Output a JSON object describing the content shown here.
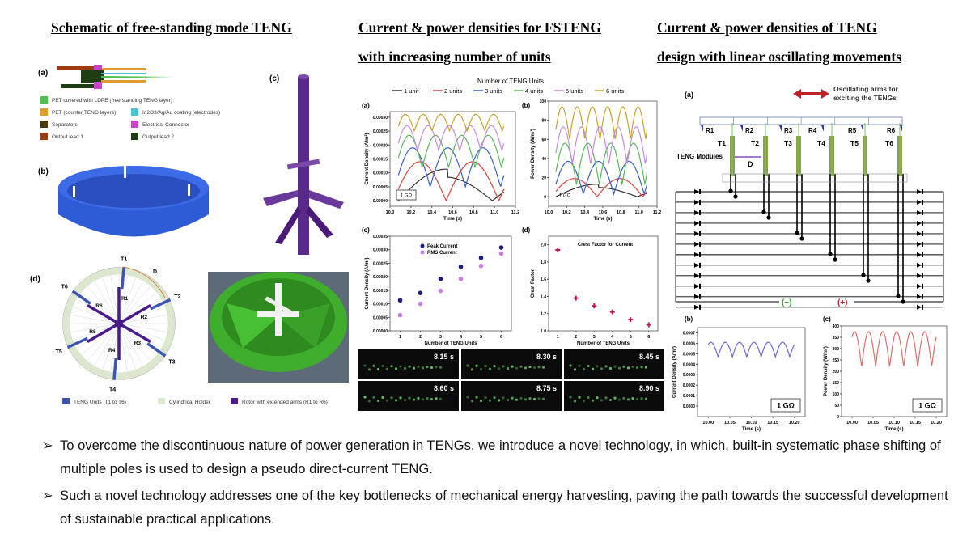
{
  "titles": {
    "left": "Schematic of free-standing mode TENG",
    "middle_line1": "Current & power densities for FSTENG",
    "middle_line2": "with increasing number of units",
    "right_line1": "Current & power densities of TENG",
    "right_line2": "design with linear oscillating movements"
  },
  "left_panel": {
    "label_a": "(a)",
    "label_b": "(b)",
    "label_c": "(c)",
    "label_d": "(d)",
    "legend_a": [
      {
        "label": "PET covered with LDPE (free standing TENG layer)",
        "color": "#4fbf4f"
      },
      {
        "label": "PET (counter TENG layers)",
        "color": "#e39a2c"
      },
      {
        "label": "In2O3/Ag/Au coating (electrodes)",
        "color": "#4fc0cf"
      },
      {
        "label": "Separators",
        "color": "#4a3a10"
      },
      {
        "label": "Electrical Connector",
        "color": "#c845c8"
      },
      {
        "label": "Output lead 1",
        "color": "#9c3a10"
      },
      {
        "label": "Output lead 2",
        "color": "#1d3d12"
      }
    ],
    "rotor_labels": [
      "R1",
      "R2",
      "R3",
      "R4",
      "R5",
      "R6"
    ],
    "teng_labels": [
      "T1",
      "T2",
      "T3",
      "T4",
      "T5",
      "T6"
    ],
    "distance_label": "D",
    "legend_d": [
      {
        "label": "TENG Units (T1 to T6)",
        "color": "#3a55b5"
      },
      {
        "label": "Cylindrical Holder",
        "color": "#dde6cf"
      },
      {
        "label": "Rotor with extended arms (R1 to R6)",
        "color": "#4b1a8a"
      }
    ]
  },
  "middle_panel": {
    "legend_title": "Number of TENG Units",
    "photo_times": [
      "8.15 s",
      "8.30 s",
      "8.45 s",
      "8.60 s",
      "8.75 s",
      "8.90 s"
    ]
  },
  "right_panel": {
    "label_a": "(a)",
    "label_b": "(b)",
    "label_c": "(c)",
    "oscillating_label_1": "Oscillating arms for",
    "oscillating_label_2": "exciting the TENGs",
    "rotor_labels": [
      "R1",
      "R2",
      "R3",
      "R4",
      "R5",
      "R6"
    ],
    "teng_labels": [
      "T1",
      "T2",
      "T3",
      "T4",
      "T5",
      "T6"
    ],
    "modules_label": "TENG Modules",
    "distance_label": "D",
    "negative_label": "(−)",
    "positive_label": "(+)",
    "negative_color": "#3aa53a",
    "positive_color": "#c0202a"
  },
  "chart_data": [
    {
      "id": "mid-a",
      "label": "(a)",
      "type": "line",
      "xlabel": "Time (s)",
      "ylabel": "Current Density (A/m²)",
      "xlim": [
        10.0,
        11.2
      ],
      "ylim": [
        -2e-05,
        0.00032
      ],
      "xticks": [
        "10.0",
        "10.2",
        "10.4",
        "10.6",
        "10.8",
        "11.0",
        "11.2"
      ],
      "yticks": [
        "0.00000",
        "0.00005",
        "0.00010",
        "0.00015",
        "0.00020",
        "0.00025",
        "0.00030"
      ],
      "annotation": "1 GΩ",
      "series": [
        {
          "name": "1 unit",
          "color": "#333333",
          "peak": 0.000113,
          "trough": 0.0
        },
        {
          "name": "2 units",
          "color": "#d9453c",
          "peak": 0.00014,
          "trough": 0.0
        },
        {
          "name": "3 units",
          "color": "#3a5fc8",
          "peak": 0.00019,
          "trough": 5e-05
        },
        {
          "name": "4 units",
          "color": "#5cb85c",
          "peak": 0.000235,
          "trough": 0.00012
        },
        {
          "name": "5 units",
          "color": "#c58be0",
          "peak": 0.00027,
          "trough": 0.00018
        },
        {
          "name": "6 units",
          "color": "#c9a227",
          "peak": 0.00031,
          "trough": 0.00025
        }
      ]
    },
    {
      "id": "mid-b",
      "label": "(b)",
      "type": "line",
      "xlabel": "Time (s)",
      "ylabel": "Power Density (W/m²)",
      "xlim": [
        10.0,
        11.2
      ],
      "ylim": [
        -10,
        100
      ],
      "xticks": [
        "10.0",
        "10.2",
        "10.4",
        "10.6",
        "10.8",
        "11.0",
        "11.2"
      ],
      "yticks": [
        "0",
        "20",
        "40",
        "60",
        "80",
        "100"
      ],
      "annotation": "1 GΩ",
      "series": [
        {
          "name": "1 unit",
          "color": "#333333",
          "peak": 13,
          "trough": 0
        },
        {
          "name": "2 units",
          "color": "#d9453c",
          "peak": 19,
          "trough": 0
        },
        {
          "name": "3 units",
          "color": "#3a5fc8",
          "peak": 37,
          "trough": 3
        },
        {
          "name": "4 units",
          "color": "#5cb85c",
          "peak": 56,
          "trough": 13
        },
        {
          "name": "5 units",
          "color": "#c58be0",
          "peak": 73,
          "trough": 34
        },
        {
          "name": "6 units",
          "color": "#c9a227",
          "peak": 94,
          "trough": 60
        }
      ]
    },
    {
      "id": "mid-c",
      "label": "(c)",
      "type": "scatter",
      "xlabel": "Number of TENG Units",
      "ylabel": "Current Density (A/m²)",
      "xlim": [
        0.5,
        6.5
      ],
      "ylim": [
        0,
        0.00035
      ],
      "xticks": [
        "1",
        "2",
        "3",
        "4",
        "5",
        "6"
      ],
      "yticks": [
        "0.00000",
        "0.00005",
        "0.00010",
        "0.00015",
        "0.00020",
        "0.00025",
        "0.00030",
        "0.00035"
      ],
      "x": [
        1,
        2,
        3,
        4,
        5,
        6
      ],
      "series": [
        {
          "name": "Peak Current",
          "color": "#1c1f7a",
          "values": [
            0.000113,
            0.00014,
            0.000192,
            0.000237,
            0.00027,
            0.000308
          ]
        },
        {
          "name": "RMS Current",
          "color": "#c77fe0",
          "values": [
            5.8e-05,
            0.0001,
            0.000148,
            0.000192,
            0.00024,
            0.000286
          ]
        }
      ]
    },
    {
      "id": "mid-d",
      "label": "(d)",
      "type": "scatter",
      "xlabel": "Number of TENG Units",
      "ylabel": "Crest Factor",
      "xlim": [
        0.5,
        6.5
      ],
      "ylim": [
        1.0,
        2.1
      ],
      "xticks": [
        "1",
        "2",
        "3",
        "4",
        "5",
        "6"
      ],
      "yticks": [
        "1.0",
        "1.2",
        "1.4",
        "1.6",
        "1.8",
        "2.0"
      ],
      "x": [
        1,
        2,
        3,
        4,
        5,
        6
      ],
      "series": [
        {
          "name": "Crest Factor for Current",
          "color": "#c2185b",
          "values": [
            1.94,
            1.38,
            1.29,
            1.22,
            1.13,
            1.07
          ]
        }
      ]
    },
    {
      "id": "right-b",
      "label": "(b)",
      "type": "line",
      "xlabel": "Time (s)",
      "ylabel": "Current Density (A/m²)",
      "xlim": [
        9.975,
        10.225
      ],
      "ylim": [
        -0.0001,
        0.00075
      ],
      "xticks": [
        "10.00",
        "10.05",
        "10.10",
        "10.15",
        "10.20"
      ],
      "yticks": [
        "0.0000",
        "0.0001",
        "0.0002",
        "0.0003",
        "0.0004",
        "0.0005",
        "0.0006",
        "0.0007"
      ],
      "annotation": "1 GΩ",
      "series": [
        {
          "color": "#6a6ad0",
          "peak": 0.00061,
          "trough": 0.00047
        }
      ]
    },
    {
      "id": "right-c",
      "label": "(c)",
      "type": "line",
      "xlabel": "Time (s)",
      "ylabel": "Power Density (W/m²)",
      "xlim": [
        9.975,
        10.225
      ],
      "ylim": [
        0,
        400
      ],
      "xticks": [
        "10.00",
        "10.05",
        "10.10",
        "10.15",
        "10.20"
      ],
      "yticks": [
        "0",
        "50",
        "100",
        "150",
        "200",
        "250",
        "300",
        "350",
        "400"
      ],
      "annotation": "1 GΩ",
      "series": [
        {
          "color": "#d9706e",
          "peak": 375,
          "trough": 220
        }
      ]
    }
  ],
  "bullets": [
    "To overcome the discontinuous nature of power generation in TENGs, we introduce a novel technology, in which, built-in systematic phase shifting of multiple poles is used to design a pseudo direct-current TENG.",
    "Such a novel technology addresses one of the key bottlenecks of mechanical energy harvesting, paving the path towards the successful development of sustainable practical applications."
  ],
  "bullet_marker": "➢"
}
